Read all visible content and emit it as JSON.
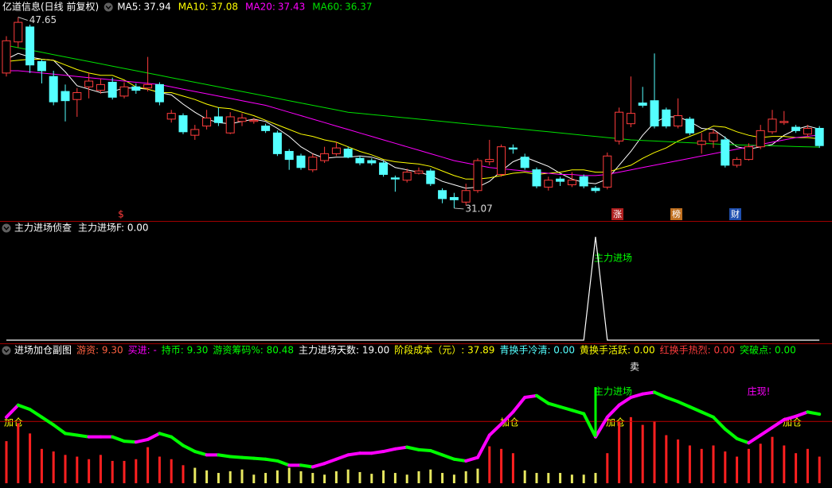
{
  "chart_data": [
    {
      "type": "candlestick",
      "title": "亿道信息(日线 前复权)",
      "up_color": "#ff3c3c",
      "down_color": "#54ffff",
      "ylim": [
        30.1,
        49.0
      ],
      "open": [
        42.8,
        45.5,
        46.8,
        43.8,
        42.5,
        41.2,
        40.5,
        41.6,
        41.3,
        42.0,
        40.8,
        41.6,
        41.5,
        41.8,
        38.8,
        39.1,
        37.4,
        38.2,
        39.0,
        37.6,
        38.6,
        38.6,
        38.2,
        37.6,
        36.0,
        35.6,
        34.4,
        35.2,
        35.8,
        36.2,
        35.4,
        35.2,
        35.0,
        33.7,
        33.5,
        34.1,
        34.3,
        32.6,
        32.0,
        31.6,
        32.6,
        35.1,
        34.0,
        36.3,
        35.5,
        34.4,
        32.9,
        33.6,
        33.1,
        33.8,
        32.8,
        32.9,
        36.9,
        38.4,
        40.2,
        40.4,
        39.6,
        38.2,
        38.8,
        36.6,
        36.9,
        37.0,
        34.8,
        35.3,
        36.4,
        37.7,
        38.5,
        38.1,
        37.5,
        38.0
      ],
      "high": [
        46.0,
        47.65,
        47.0,
        44.0,
        43.0,
        41.8,
        41.5,
        42.8,
        42.3,
        42.4,
        42.0,
        41.9,
        44.2,
        42.0,
        39.6,
        39.3,
        38.3,
        39.6,
        39.8,
        39.4,
        39.3,
        38.9,
        38.4,
        37.8,
        36.2,
        35.8,
        35.8,
        36.4,
        36.8,
        36.4,
        35.6,
        35.4,
        35.2,
        33.9,
        34.5,
        34.6,
        34.5,
        32.8,
        32.4,
        33.2,
        35.4,
        37.0,
        36.6,
        36.6,
        35.8,
        34.6,
        33.8,
        33.8,
        34.2,
        34.0,
        33.0,
        35.9,
        39.8,
        42.5,
        41.6,
        44.5,
        39.8,
        40.6,
        39.0,
        37.6,
        37.9,
        37.3,
        35.5,
        36.7,
        38.3,
        39.6,
        39.5,
        38.3,
        38.3,
        38.2
      ],
      "low": [
        42.5,
        45.0,
        42.8,
        41.9,
        40.0,
        38.6,
        39.0,
        40.6,
        41.0,
        40.5,
        40.6,
        41.0,
        41.2,
        40.0,
        38.5,
        37.5,
        37.0,
        37.9,
        38.2,
        37.5,
        38.2,
        38.4,
        37.6,
        35.6,
        34.4,
        34.4,
        34.2,
        35.0,
        35.6,
        35.4,
        34.8,
        34.8,
        33.8,
        32.5,
        33.3,
        34.0,
        33.0,
        31.5,
        31.07,
        31.3,
        32.4,
        34.8,
        33.8,
        35.8,
        34.4,
        32.8,
        32.6,
        33.0,
        32.9,
        32.8,
        32.4,
        32.7,
        36.6,
        38.1,
        39.8,
        38.0,
        38.0,
        38.0,
        37.4,
        35.8,
        36.3,
        34.6,
        34.6,
        35.2,
        36.2,
        37.5,
        38.3,
        37.6,
        37.3,
        36.3
      ],
      "close": [
        45.6,
        47.2,
        43.5,
        43.0,
        40.3,
        40.4,
        41.1,
        42.1,
        41.8,
        40.7,
        41.6,
        41.3,
        41.8,
        40.3,
        39.3,
        37.7,
        37.9,
        38.9,
        38.5,
        39.0,
        38.9,
        38.7,
        37.8,
        35.8,
        35.3,
        34.6,
        35.5,
        35.8,
        36.3,
        35.5,
        35.0,
        35.0,
        34.0,
        33.6,
        34.2,
        34.3,
        33.2,
        31.9,
        31.8,
        32.6,
        35.2,
        35.3,
        36.4,
        36.2,
        34.6,
        33.0,
        33.5,
        33.4,
        33.5,
        33.0,
        32.6,
        35.6,
        39.4,
        39.3,
        40.0,
        38.2,
        38.2,
        39.1,
        37.6,
        36.9,
        37.6,
        34.8,
        35.3,
        36.4,
        37.8,
        38.8,
        38.6,
        37.8,
        38.0,
        36.5
      ],
      "series": [
        {
          "name": "MA5:",
          "legend_value": 37.94,
          "color": "#ffffff",
          "values": [
            44.0,
            44.5,
            44.2,
            44.0,
            43.9,
            42.9,
            41.7,
            41.4,
            41.1,
            41.2,
            41.5,
            41.5,
            41.4,
            41.1,
            40.9,
            40.1,
            39.4,
            38.8,
            38.5,
            38.4,
            38.6,
            38.8,
            38.6,
            38.0,
            37.3,
            36.4,
            35.8,
            35.4,
            35.5,
            35.5,
            35.6,
            35.5,
            35.2,
            34.6,
            34.4,
            34.2,
            33.9,
            33.4,
            33.1,
            32.8,
            32.9,
            33.4,
            34.3,
            35.1,
            35.5,
            35.1,
            34.7,
            34.1,
            33.6,
            33.3,
            33.2,
            33.6,
            34.8,
            36.0,
            37.4,
            38.5,
            39.0,
            39.0,
            38.6,
            38.0,
            37.9,
            37.2,
            36.4,
            36.2,
            36.4,
            36.6,
            37.4,
            37.9,
            38.2,
            37.94
          ]
        },
        {
          "name": "MA10:",
          "legend_value": 37.08,
          "color": "#ffff00",
          "values": [
            43.8,
            43.9,
            44.0,
            44.0,
            43.9,
            43.5,
            43.1,
            42.8,
            42.6,
            42.6,
            42.2,
            41.6,
            41.4,
            41.1,
            41.1,
            40.8,
            40.5,
            40.1,
            39.8,
            39.7,
            39.4,
            39.1,
            38.7,
            38.3,
            37.9,
            37.5,
            37.3,
            37.0,
            36.8,
            36.4,
            36.0,
            35.7,
            35.3,
            35.1,
            35.0,
            34.9,
            34.7,
            34.3,
            33.9,
            33.6,
            33.6,
            33.7,
            33.9,
            34.1,
            34.2,
            34.0,
            34.1,
            34.2,
            34.4,
            34.4,
            34.2,
            34.2,
            34.5,
            34.8,
            35.4,
            35.9,
            36.3,
            36.9,
            37.3,
            37.7,
            38.2,
            38.1,
            37.7,
            37.4,
            37.2,
            37.3,
            37.3,
            37.2,
            37.2,
            37.08
          ]
        },
        {
          "name": "MA20:",
          "legend_value": 37.43,
          "color": "#ff00ff",
          "values": [
            43.0,
            43.0,
            42.9,
            42.8,
            42.7,
            42.6,
            42.5,
            42.4,
            42.3,
            42.2,
            42.1,
            42.0,
            41.9,
            41.8,
            41.6,
            41.4,
            41.2,
            41.0,
            40.8,
            40.6,
            40.4,
            40.2,
            40.0,
            39.7,
            39.4,
            39.1,
            38.8,
            38.5,
            38.2,
            37.9,
            37.6,
            37.3,
            37.0,
            36.7,
            36.4,
            36.1,
            35.8,
            35.5,
            35.2,
            35.0,
            34.8,
            34.6,
            34.5,
            34.4,
            34.3,
            34.2,
            34.1,
            34.0,
            34.0,
            33.9,
            33.9,
            34.0,
            34.2,
            34.4,
            34.6,
            34.8,
            35.0,
            35.2,
            35.4,
            35.6,
            35.8,
            36.0,
            36.2,
            36.4,
            36.6,
            36.8,
            37.0,
            37.2,
            37.3,
            37.43
          ]
        },
        {
          "name": "MA60:",
          "legend_value": 36.37,
          "color": "#00e000",
          "values": [
            45.2,
            45.0,
            44.8,
            44.6,
            44.4,
            44.2,
            44.0,
            43.8,
            43.6,
            43.4,
            43.2,
            43.0,
            42.8,
            42.6,
            42.4,
            42.2,
            42.0,
            41.8,
            41.6,
            41.4,
            41.2,
            41.0,
            40.8,
            40.6,
            40.4,
            40.2,
            40.0,
            39.8,
            39.6,
            39.4,
            39.3,
            39.2,
            39.1,
            39.0,
            38.9,
            38.8,
            38.7,
            38.6,
            38.5,
            38.4,
            38.3,
            38.2,
            38.1,
            38.0,
            37.9,
            37.8,
            37.7,
            37.6,
            37.5,
            37.4,
            37.3,
            37.2,
            37.1,
            37.0,
            36.95,
            36.9,
            36.85,
            36.8,
            36.75,
            36.7,
            36.65,
            36.6,
            36.57,
            36.54,
            36.51,
            36.48,
            36.45,
            36.42,
            36.4,
            36.37
          ]
        }
      ],
      "high_label": 47.65,
      "low_label": 31.07,
      "markers": [
        "$",
        "涨",
        "榜",
        "财"
      ]
    },
    {
      "type": "line",
      "title": "主力进场侦查",
      "subtitle": "主力进场F: 0.00",
      "color": "#ffffff",
      "ylim": [
        0,
        1
      ],
      "values": [
        0,
        0,
        0,
        0,
        0,
        0,
        0,
        0,
        0,
        0,
        0,
        0,
        0,
        0,
        0,
        0,
        0,
        0,
        0,
        0,
        0,
        0,
        0,
        0,
        0,
        0,
        0,
        0,
        0,
        0,
        0,
        0,
        0,
        0,
        0,
        0,
        0,
        0,
        0,
        0,
        0,
        0,
        0,
        0,
        0,
        0,
        0,
        0,
        0,
        0,
        1,
        0,
        0,
        0,
        0,
        0,
        0,
        0,
        0,
        0,
        0,
        0,
        0,
        0,
        0,
        0,
        0,
        0,
        0,
        0
      ],
      "annotation": "主力进场"
    },
    {
      "type": "composite",
      "title": "进场加仓副图",
      "items": [
        {
          "text": "游资: 9.30",
          "color": "#ff6040"
        },
        {
          "text": "买进: -",
          "color": "#ff00ff"
        },
        {
          "text": "持币: 9.30",
          "color": "#00ff00"
        },
        {
          "text": "游资筹码%: 80.48",
          "color": "#00ff00"
        },
        {
          "text": "主力进场天数: 19.00",
          "color": "#ffffff"
        },
        {
          "text": "阶段成本（元）: 37.89",
          "color": "#ffff00"
        },
        {
          "text": "青换手冷清: 0.00",
          "color": "#54ffff"
        },
        {
          "text": "黄换手活跃: 0.00",
          "color": "#ffff00"
        },
        {
          "text": "红换手热烈: 0.00",
          "color": "#ff3c3c"
        },
        {
          "text": "突破点: 0.00",
          "color": "#00ff00"
        }
      ],
      "ylim": [
        0,
        120
      ],
      "reference_line": 72,
      "reference_color": "#c00000",
      "line": {
        "up_color": "#ff00ff",
        "down_color": "#00ff00",
        "values": [
          77,
          91,
          86,
          77,
          68,
          58,
          56,
          54,
          54,
          54,
          49,
          48,
          51,
          58,
          54,
          44,
          37,
          33,
          33,
          31,
          30,
          29,
          28,
          26,
          21,
          21,
          19,
          23,
          28,
          33,
          35,
          35,
          37,
          40,
          42,
          39,
          38,
          33,
          28,
          26,
          30,
          56,
          69,
          83,
          100,
          102,
          93,
          89,
          85,
          81,
          54,
          77,
          91,
          100,
          104,
          106,
          100,
          95,
          89,
          83,
          77,
          63,
          52,
          47,
          56,
          65,
          74,
          78,
          83,
          80.48
        ]
      },
      "spike": {
        "color": "#00ff00",
        "values": [
          null,
          null,
          null,
          null,
          null,
          null,
          null,
          null,
          null,
          null,
          null,
          null,
          null,
          null,
          null,
          null,
          null,
          null,
          null,
          null,
          null,
          null,
          null,
          null,
          null,
          null,
          null,
          null,
          null,
          null,
          null,
          null,
          null,
          null,
          null,
          null,
          null,
          null,
          null,
          null,
          null,
          null,
          null,
          null,
          null,
          null,
          null,
          null,
          null,
          null,
          112,
          null,
          null,
          null,
          null,
          null,
          null,
          null,
          null,
          null,
          null,
          null,
          null,
          null,
          null,
          null,
          null,
          null,
          null,
          null
        ]
      },
      "bars": [
        {
          "color": "#ff2020",
          "values": [
            49,
            70,
            58,
            40,
            37,
            33,
            31,
            28,
            33,
            26,
            26,
            28,
            42,
            31,
            28,
            21,
            null,
            null,
            null,
            null,
            null,
            null,
            null,
            null,
            null,
            null,
            null,
            null,
            null,
            null,
            null,
            null,
            null,
            null,
            null,
            null,
            null,
            null,
            null,
            null,
            null,
            43,
            40,
            35,
            null,
            null,
            null,
            null,
            null,
            null,
            null,
            35,
            72,
            77,
            68,
            72,
            56,
            51,
            44,
            40,
            44,
            37,
            31,
            40,
            46,
            54,
            44,
            35,
            40,
            31
          ]
        },
        {
          "color": "#e8e860",
          "values": [
            null,
            null,
            null,
            null,
            null,
            null,
            null,
            null,
            null,
            null,
            null,
            null,
            null,
            null,
            null,
            null,
            18,
            15,
            12,
            14,
            16,
            10,
            12,
            15,
            18,
            14,
            12,
            10,
            14,
            16,
            13,
            11,
            15,
            12,
            10,
            14,
            16,
            12,
            10,
            14,
            17,
            null,
            null,
            null,
            15,
            12,
            12,
            12,
            10,
            10,
            12,
            null,
            null,
            null,
            null,
            null,
            null,
            null,
            null,
            null,
            null,
            null,
            null,
            null,
            null,
            null,
            null,
            null,
            null,
            null
          ]
        }
      ],
      "labels": [
        "卖",
        "加仓",
        "加仓",
        "加仓",
        "加仓",
        "主力进场",
        "庄现!"
      ]
    }
  ]
}
